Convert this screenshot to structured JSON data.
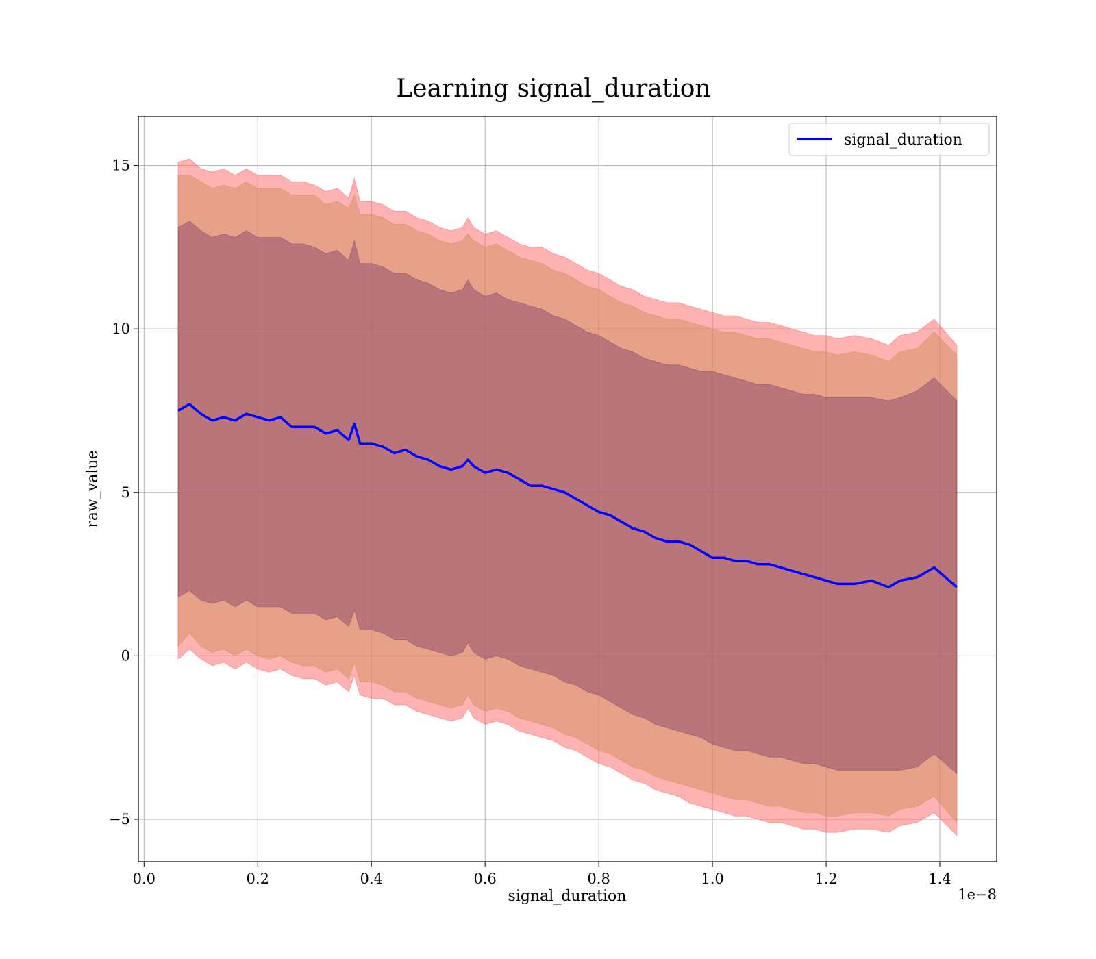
{
  "chart_data": {
    "type": "area",
    "title": "Learning signal_duration",
    "xlabel": "signal_duration",
    "ylabel": "raw_value",
    "x_offset_label": "1e−8",
    "xlim": [
      -0.01,
      1.5
    ],
    "ylim": [
      -6.3,
      16.5
    ],
    "x_ticks": [
      0.0,
      0.2,
      0.4,
      0.6,
      0.8,
      1.0,
      1.2,
      1.4
    ],
    "x_tick_labels": [
      "0.0",
      "0.2",
      "0.4",
      "0.6",
      "0.8",
      "1.0",
      "1.2",
      "1.4"
    ],
    "y_ticks": [
      -5,
      0,
      5,
      10,
      15
    ],
    "y_tick_labels": [
      "−5",
      "0",
      "5",
      "10",
      "15"
    ],
    "grid": true,
    "legend_position": "top-right",
    "x": [
      0.06,
      0.08,
      0.1,
      0.12,
      0.14,
      0.16,
      0.18,
      0.2,
      0.22,
      0.24,
      0.26,
      0.28,
      0.3,
      0.32,
      0.34,
      0.36,
      0.37,
      0.38,
      0.4,
      0.42,
      0.44,
      0.46,
      0.48,
      0.5,
      0.52,
      0.54,
      0.56,
      0.57,
      0.58,
      0.6,
      0.62,
      0.64,
      0.66,
      0.68,
      0.7,
      0.72,
      0.74,
      0.76,
      0.78,
      0.8,
      0.82,
      0.84,
      0.86,
      0.88,
      0.9,
      0.92,
      0.94,
      0.96,
      0.98,
      1.0,
      1.02,
      1.04,
      1.06,
      1.08,
      1.1,
      1.12,
      1.14,
      1.16,
      1.18,
      1.2,
      1.22,
      1.25,
      1.28,
      1.31,
      1.33,
      1.36,
      1.39,
      1.43
    ],
    "series": [
      {
        "name": "signal_duration",
        "color": "#0000ff",
        "values": [
          7.5,
          7.7,
          7.4,
          7.2,
          7.3,
          7.2,
          7.4,
          7.3,
          7.2,
          7.3,
          7.0,
          7.0,
          7.0,
          6.8,
          6.9,
          6.6,
          7.1,
          6.5,
          6.5,
          6.4,
          6.2,
          6.3,
          6.1,
          6.0,
          5.8,
          5.7,
          5.8,
          6.0,
          5.8,
          5.6,
          5.7,
          5.6,
          5.4,
          5.2,
          5.2,
          5.1,
          5.0,
          4.8,
          4.6,
          4.4,
          4.3,
          4.1,
          3.9,
          3.8,
          3.6,
          3.5,
          3.5,
          3.4,
          3.2,
          3.0,
          3.0,
          2.9,
          2.9,
          2.8,
          2.8,
          2.7,
          2.6,
          2.5,
          2.4,
          2.3,
          2.2,
          2.2,
          2.3,
          2.1,
          2.3,
          2.4,
          2.7,
          2.1
        ]
      }
    ],
    "bands": [
      {
        "level": "outer",
        "color": "#ff6666",
        "upper": [
          15.1,
          15.2,
          14.9,
          14.8,
          14.9,
          14.7,
          14.9,
          14.7,
          14.7,
          14.7,
          14.5,
          14.5,
          14.4,
          14.2,
          14.3,
          14.0,
          14.6,
          13.9,
          13.9,
          13.8,
          13.6,
          13.6,
          13.4,
          13.3,
          13.1,
          13.0,
          13.1,
          13.4,
          13.1,
          12.9,
          13.0,
          12.8,
          12.6,
          12.5,
          12.5,
          12.3,
          12.2,
          12.0,
          11.8,
          11.7,
          11.5,
          11.3,
          11.2,
          11.0,
          10.9,
          10.8,
          10.8,
          10.7,
          10.6,
          10.5,
          10.4,
          10.4,
          10.3,
          10.2,
          10.2,
          10.1,
          10.0,
          9.9,
          9.8,
          9.8,
          9.7,
          9.8,
          9.7,
          9.5,
          9.8,
          9.9,
          10.3,
          9.5
        ],
        "lower": [
          -0.1,
          0.2,
          -0.1,
          -0.3,
          -0.2,
          -0.4,
          -0.2,
          -0.4,
          -0.5,
          -0.4,
          -0.6,
          -0.7,
          -0.7,
          -0.9,
          -0.8,
          -1.1,
          -0.6,
          -1.2,
          -1.3,
          -1.3,
          -1.5,
          -1.5,
          -1.7,
          -1.8,
          -1.9,
          -2.0,
          -1.9,
          -1.6,
          -1.9,
          -2.1,
          -2.0,
          -2.1,
          -2.3,
          -2.4,
          -2.5,
          -2.6,
          -2.8,
          -2.9,
          -3.1,
          -3.3,
          -3.4,
          -3.6,
          -3.8,
          -3.9,
          -4.1,
          -4.2,
          -4.3,
          -4.5,
          -4.6,
          -4.7,
          -4.8,
          -4.9,
          -4.9,
          -5.0,
          -5.1,
          -5.1,
          -5.2,
          -5.3,
          -5.3,
          -5.4,
          -5.4,
          -5.3,
          -5.3,
          -5.4,
          -5.2,
          -5.1,
          -4.8,
          -5.5
        ]
      },
      {
        "level": "middle",
        "color": "#d09060",
        "upper": [
          14.7,
          14.7,
          14.5,
          14.3,
          14.4,
          14.3,
          14.5,
          14.3,
          14.3,
          14.3,
          14.1,
          14.1,
          14.1,
          13.8,
          13.9,
          13.7,
          14.1,
          13.5,
          13.5,
          13.4,
          13.2,
          13.2,
          13.0,
          12.9,
          12.7,
          12.6,
          12.7,
          12.9,
          12.7,
          12.5,
          12.6,
          12.4,
          12.2,
          12.1,
          12.0,
          11.8,
          11.7,
          11.5,
          11.3,
          11.2,
          11.0,
          10.8,
          10.7,
          10.5,
          10.4,
          10.3,
          10.3,
          10.2,
          10.1,
          10.0,
          9.9,
          9.9,
          9.8,
          9.7,
          9.7,
          9.6,
          9.5,
          9.4,
          9.3,
          9.3,
          9.2,
          9.3,
          9.2,
          9.0,
          9.3,
          9.4,
          9.9,
          9.2
        ],
        "lower": [
          0.3,
          0.7,
          0.3,
          0.1,
          0.2,
          0.0,
          0.2,
          0.0,
          -0.1,
          0.0,
          -0.2,
          -0.3,
          -0.3,
          -0.5,
          -0.4,
          -0.7,
          -0.2,
          -0.8,
          -0.8,
          -0.9,
          -1.1,
          -1.1,
          -1.3,
          -1.4,
          -1.5,
          -1.6,
          -1.5,
          -1.2,
          -1.5,
          -1.7,
          -1.6,
          -1.7,
          -1.9,
          -2.0,
          -2.1,
          -2.2,
          -2.4,
          -2.5,
          -2.7,
          -2.9,
          -3.0,
          -3.2,
          -3.4,
          -3.5,
          -3.7,
          -3.8,
          -3.9,
          -4.0,
          -4.1,
          -4.2,
          -4.3,
          -4.4,
          -4.4,
          -4.5,
          -4.6,
          -4.6,
          -4.7,
          -4.8,
          -4.8,
          -4.9,
          -4.9,
          -4.8,
          -4.8,
          -4.9,
          -4.7,
          -4.6,
          -4.3,
          -5.1
        ]
      },
      {
        "level": "inner",
        "color": "#8b4a6b",
        "upper": [
          13.1,
          13.3,
          13.0,
          12.8,
          12.9,
          12.8,
          13.0,
          12.8,
          12.8,
          12.8,
          12.6,
          12.6,
          12.5,
          12.3,
          12.4,
          12.1,
          12.7,
          12.0,
          12.0,
          11.9,
          11.7,
          11.7,
          11.5,
          11.4,
          11.2,
          11.1,
          11.2,
          11.5,
          11.2,
          11.0,
          11.1,
          10.9,
          10.8,
          10.7,
          10.6,
          10.4,
          10.3,
          10.1,
          9.9,
          9.8,
          9.6,
          9.4,
          9.3,
          9.1,
          9.0,
          8.9,
          8.9,
          8.8,
          8.7,
          8.7,
          8.6,
          8.5,
          8.4,
          8.3,
          8.3,
          8.2,
          8.1,
          8.0,
          8.0,
          7.9,
          7.9,
          7.9,
          7.9,
          7.8,
          7.9,
          8.1,
          8.5,
          7.8
        ],
        "lower": [
          1.8,
          2.0,
          1.7,
          1.6,
          1.7,
          1.5,
          1.7,
          1.5,
          1.5,
          1.5,
          1.3,
          1.3,
          1.3,
          1.1,
          1.2,
          0.9,
          1.4,
          0.8,
          0.8,
          0.7,
          0.5,
          0.5,
          0.3,
          0.2,
          0.1,
          0.0,
          0.1,
          0.4,
          0.1,
          -0.1,
          0.0,
          -0.1,
          -0.3,
          -0.4,
          -0.5,
          -0.6,
          -0.8,
          -0.9,
          -1.1,
          -1.2,
          -1.4,
          -1.6,
          -1.8,
          -1.9,
          -2.1,
          -2.2,
          -2.3,
          -2.4,
          -2.5,
          -2.7,
          -2.8,
          -2.9,
          -2.9,
          -3.0,
          -3.1,
          -3.1,
          -3.2,
          -3.3,
          -3.3,
          -3.4,
          -3.5,
          -3.5,
          -3.5,
          -3.5,
          -3.5,
          -3.4,
          -3.0,
          -3.6
        ]
      }
    ]
  }
}
